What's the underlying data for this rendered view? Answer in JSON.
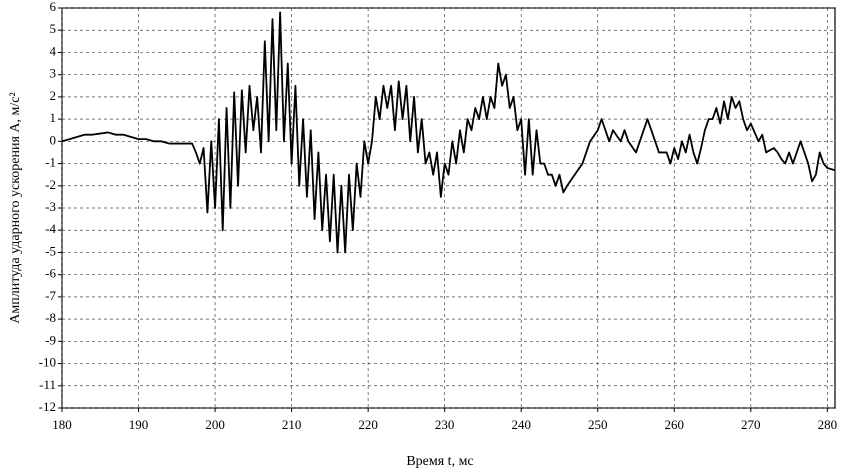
{
  "chart_data": {
    "type": "line",
    "xlabel": "Время t, мс",
    "ylabel": "Амплитуда ударного ускорения A, м/с²",
    "xlim": [
      180,
      281
    ],
    "ylim": [
      -12,
      6
    ],
    "xticks": [
      180,
      190,
      200,
      210,
      220,
      230,
      240,
      250,
      260,
      270,
      280
    ],
    "yticks": [
      6,
      5,
      4,
      3,
      2,
      1,
      0,
      -1,
      -2,
      -3,
      -4,
      -5,
      -6,
      -7,
      -8,
      -9,
      -10,
      -11,
      -12
    ],
    "grid": true,
    "series": [
      {
        "color": "#000000",
        "x": [
          180,
          181,
          182,
          183,
          184,
          185,
          186,
          187,
          188,
          189,
          190,
          191,
          192,
          193,
          194,
          195,
          196,
          197,
          197.5,
          198,
          198.5,
          199,
          199.5,
          200,
          200.5,
          201,
          201.5,
          202,
          202.5,
          203,
          203.5,
          204,
          204.5,
          205,
          205.5,
          206,
          206.5,
          207,
          207.5,
          208,
          208.5,
          209,
          209.5,
          210,
          210.5,
          211,
          211.5,
          212,
          212.5,
          213,
          213.5,
          214,
          214.5,
          215,
          215.5,
          216,
          216.5,
          217,
          217.5,
          218,
          218.5,
          219,
          219.5,
          220,
          220.5,
          221,
          221.5,
          222,
          222.5,
          223,
          223.5,
          224,
          224.5,
          225,
          225.5,
          226,
          226.5,
          227,
          227.5,
          228,
          228.5,
          229,
          229.5,
          230,
          230.5,
          231,
          231.5,
          232,
          232.5,
          233,
          233.5,
          234,
          234.5,
          235,
          235.5,
          236,
          236.5,
          237,
          237.5,
          238,
          238.5,
          239,
          239.5,
          240,
          240.5,
          241,
          241.5,
          242,
          242.5,
          243,
          243.5,
          244,
          244.5,
          245,
          245.5,
          246,
          247,
          248,
          249,
          250,
          250.5,
          251,
          251.5,
          252,
          253,
          253.5,
          254,
          255,
          256,
          256.5,
          257,
          258,
          259,
          259.5,
          260,
          260.5,
          261,
          261.5,
          262,
          262.5,
          263,
          263.5,
          264,
          264.5,
          265,
          265.5,
          266,
          266.5,
          267,
          267.5,
          268,
          268.5,
          269,
          269.5,
          270,
          271,
          271.5,
          272,
          273,
          273.5,
          274,
          274.5,
          275,
          275.5,
          276,
          276.5,
          277,
          277.5,
          278,
          278.5,
          279,
          279.5,
          280,
          281
        ],
        "values": [
          0,
          0.1,
          0.2,
          0.3,
          0.3,
          0.35,
          0.4,
          0.3,
          0.3,
          0.2,
          0.1,
          0.1,
          0,
          0,
          -0.1,
          -0.1,
          -0.1,
          -0.1,
          -0.5,
          -1,
          -0.3,
          -3.2,
          0,
          -3,
          1,
          -4,
          1.5,
          -3,
          2.2,
          -2,
          2.3,
          -0.5,
          2.5,
          0.5,
          2,
          -0.5,
          4.5,
          0,
          5.5,
          0.5,
          5.8,
          0,
          3.5,
          -1,
          2.5,
          -2,
          1,
          -2.5,
          0.5,
          -3.5,
          -0.5,
          -4,
          -1.5,
          -4.5,
          -1.5,
          -5,
          -2,
          -5,
          -1.5,
          -4,
          -1,
          -2.5,
          0,
          -1,
          0,
          2,
          1,
          2.5,
          1.5,
          2.5,
          0.5,
          2.7,
          1,
          2.5,
          0,
          2,
          -0.5,
          1,
          -1,
          -0.5,
          -1.5,
          -0.5,
          -2.5,
          -1,
          -1.5,
          0,
          -1,
          0.5,
          -0.5,
          1,
          0.5,
          1.5,
          1,
          2,
          1,
          2,
          1.5,
          3.5,
          2.5,
          3,
          1.5,
          2,
          0.5,
          1,
          -1.5,
          1,
          -1.5,
          0.5,
          -1,
          -1,
          -1.5,
          -1.5,
          -2,
          -1.5,
          -2.3,
          -2,
          -1.5,
          -1,
          0,
          0.5,
          1,
          0.5,
          0,
          0.5,
          0,
          0.5,
          0,
          -0.5,
          0.5,
          1,
          0.5,
          -0.5,
          -0.5,
          -1,
          -0.3,
          -0.8,
          0,
          -0.5,
          0.3,
          -0.5,
          -1,
          -0.3,
          0.5,
          1,
          1,
          1.5,
          0.8,
          1.8,
          1,
          2,
          1.5,
          1.8,
          1,
          0.5,
          0.8,
          0,
          0.3,
          -0.5,
          -0.3,
          -0.5,
          -0.8,
          -1,
          -0.5,
          -1,
          -0.5,
          0,
          -0.5,
          -1,
          -1.8,
          -1.5,
          -0.5,
          -1,
          -1.2,
          -1.3
        ]
      }
    ]
  }
}
